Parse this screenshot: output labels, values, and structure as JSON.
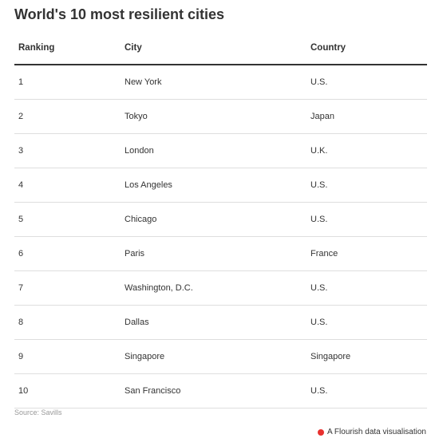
{
  "chart_data": {
    "type": "table",
    "title": "World's 10 most resilient cities",
    "columns": [
      "Ranking",
      "City",
      "Country"
    ],
    "rows": [
      [
        "1",
        "New York",
        "U.S."
      ],
      [
        "2",
        "Tokyo",
        "Japan"
      ],
      [
        "3",
        "London",
        "U.K."
      ],
      [
        "4",
        "Los Angeles",
        "U.S."
      ],
      [
        "5",
        "Chicago",
        "U.S."
      ],
      [
        "6",
        "Paris",
        "France"
      ],
      [
        "7",
        "Washington, D.C.",
        "U.S."
      ],
      [
        "8",
        "Dallas",
        "U.S."
      ],
      [
        "9",
        "Singapore",
        "Singapore"
      ],
      [
        "10",
        "San Francisco",
        "U.S."
      ]
    ],
    "source": "Source: Savills"
  },
  "footer": {
    "flourish_label": "A Flourish data visualisation",
    "flourish_color": "#e8312f"
  },
  "icons": {
    "flourish": "flourish-logo-icon"
  }
}
